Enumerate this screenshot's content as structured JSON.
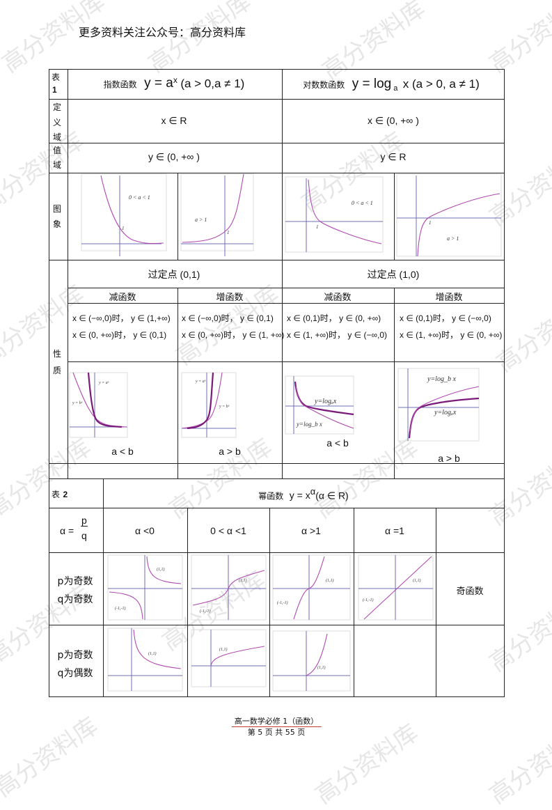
{
  "header_note": "更多资料关注公众号：高分资料库",
  "watermark": "高分资料库",
  "table1": {
    "label_table": "表",
    "label_num": "1",
    "exp": {
      "name": "指数函数",
      "formula_base": "y = a",
      "formula_sup": "x",
      "formula_cond": "(a > 0,a ≠ 1)"
    },
    "log": {
      "name": "对数数函数",
      "formula_base": "y = log",
      "formula_sub": "a",
      "formula_cond": "x (a > 0, a ≠ 1)"
    },
    "rows": {
      "domain_label": [
        "定",
        "义",
        "域"
      ],
      "range_label": [
        "值",
        "域"
      ],
      "graph_label": [
        "图",
        "象"
      ],
      "property_label": [
        "性",
        "质"
      ]
    },
    "domain": {
      "exp": "x ∈ R",
      "log": "x ∈ (0, +∞ )"
    },
    "range": {
      "exp": "y ∈ (0, +∞ )",
      "log": "y ∈ R"
    },
    "graph_labels": {
      "exp_dec": "0 < a < 1",
      "exp_inc": "a > 1",
      "log_dec": "0 < a < 1",
      "log_inc": "a > 1",
      "one": "1"
    },
    "fixed_point": {
      "exp": "过定点 (0,1)",
      "log": "过定点 (1,0)"
    },
    "monotonic": [
      "减函数",
      "增函数",
      "减函数",
      "增函数"
    ],
    "properties": [
      [
        "x ∈ (−∞,0)时， y ∈ (1,+∞)",
        "x ∈ (0, +∞)时， y ∈ (0,1)"
      ],
      [
        "x ∈ (−∞,0)时， y ∈ (0,1)",
        "x ∈ (0, +∞)时， y ∈ (1, +∞)"
      ],
      [
        "x ∈ (0,1)时， y ∈ (0, +∞)",
        "x ∈ (1, +∞)时， y ∈ (−∞,0)"
      ],
      [
        "x ∈ (0,1)时， y ∈ (−∞,0)",
        "x ∈ (1, +∞)时， y ∈ (0, +∞)"
      ]
    ],
    "compare_graph_labels": {
      "ya": "y = aˣ",
      "yb": "y = bˣ",
      "yloga": "y=logₐx",
      "ylogb": "y=log_b x"
    },
    "compare": [
      "a < b",
      "a > b",
      "a < b",
      "a > b"
    ]
  },
  "table2": {
    "label_table": "表",
    "label_num": "2",
    "title_name": "幂函数",
    "title_base": "y = x",
    "title_sup": "α",
    "title_cond": "(α ∈ R)",
    "alpha_def": {
      "lhs": "α =",
      "num": "p",
      "den": "q"
    },
    "columns": [
      "α <0",
      "0 < α <1",
      "α >1",
      "α =1"
    ],
    "row1": {
      "label": [
        "p为奇数",
        "q为奇数"
      ],
      "note": "奇函数"
    },
    "row2": {
      "label": [
        "p为奇数",
        "q为偶数"
      ]
    },
    "point_labels": {
      "p11": "(1,1)",
      "pm": "(-1,-1)"
    }
  },
  "footer": {
    "course": "高一数学必修  1（函数）",
    "page": "第 5 页  共 55 页"
  }
}
